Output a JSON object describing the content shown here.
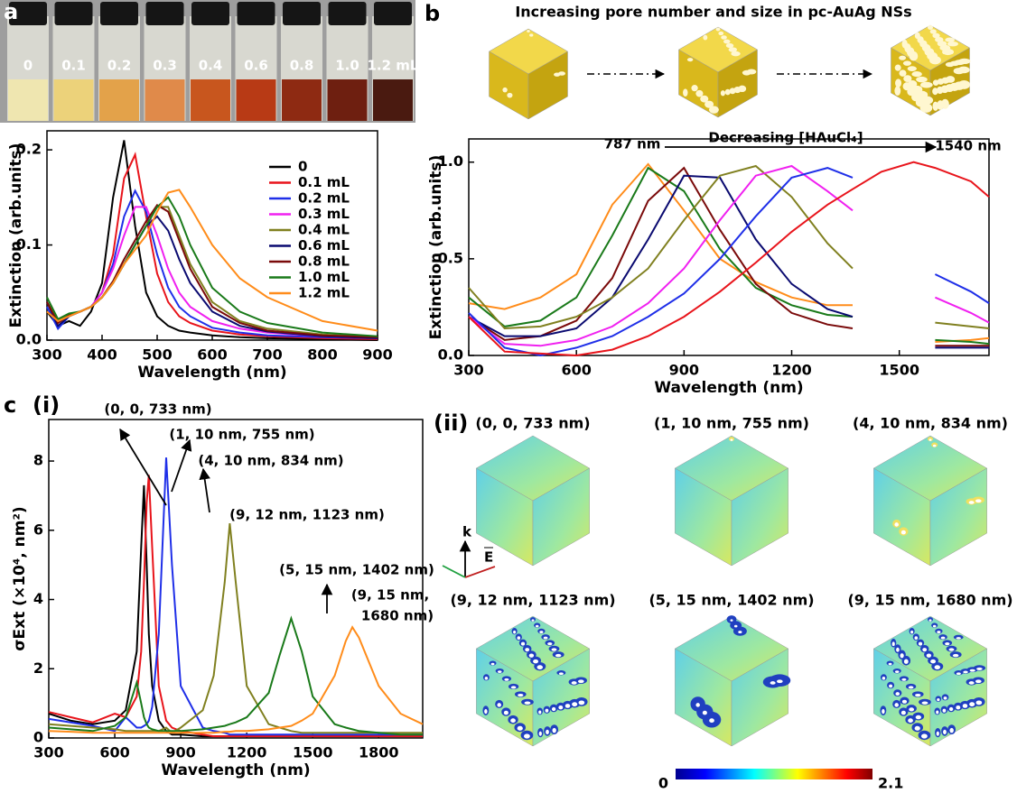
{
  "panel_labels": [
    "a",
    "b",
    "c",
    "(i)",
    "(ii)"
  ],
  "vials": [
    "0",
    "0.1",
    "0.2",
    "0.3",
    "0.4",
    "0.6",
    "0.8",
    "1.0",
    "1.2 mL"
  ],
  "scheme_title": "Increasing pore number and size in pc-AuAg NSs",
  "axes_labels": [
    "k",
    "E"
  ],
  "cubes": [
    "(0, 0, 733 nm)",
    "(1, 10 nm, 755 nm)",
    "(4, 10 nm, 834 nm)",
    "(9, 12 nm, 1123 nm)",
    "(5, 15 nm, 1402 nm)",
    "(9, 15 nm, 1680 nm)"
  ],
  "colorbar": {
    "min": 0,
    "max": 2.1
  },
  "chart_data": [
    {
      "type": "line",
      "xlabel": "Wavelength (nm)",
      "ylabel": "Extinction (arb.units)",
      "x": [
        300,
        320,
        340,
        360,
        380,
        400,
        420,
        440,
        460,
        480,
        500,
        520,
        540,
        560,
        600,
        650,
        700,
        800,
        900
      ],
      "xlim": [
        300,
        900
      ],
      "xticks": [
        300,
        400,
        500,
        600,
        700,
        800,
        900
      ],
      "ylim": [
        0,
        0.22
      ],
      "yticks": [
        {
          "value": 0,
          "label": "0.0"
        },
        0.1,
        0.2
      ],
      "legend": "upper right",
      "series": [
        {
          "name": "0",
          "color": "#000000",
          "values": [
            0.03,
            0.015,
            0.02,
            0.015,
            0.03,
            0.06,
            0.15,
            0.21,
            0.12,
            0.05,
            0.025,
            0.015,
            0.01,
            0.008,
            0.005,
            0.003,
            0.002,
            0.001,
            0
          ]
        },
        {
          "name": "0.1 mL",
          "color": "#e8141b",
          "values": [
            0.04,
            0.02,
            0.027,
            0.03,
            0.035,
            0.05,
            0.09,
            0.17,
            0.195,
            0.13,
            0.07,
            0.04,
            0.025,
            0.018,
            0.01,
            0.006,
            0.004,
            0.002,
            0.001
          ]
        },
        {
          "name": "0.2 mL",
          "color": "#1f2fe8",
          "values": [
            0.035,
            0.012,
            0.025,
            0.03,
            0.035,
            0.05,
            0.08,
            0.13,
            0.157,
            0.135,
            0.09,
            0.055,
            0.035,
            0.025,
            0.013,
            0.008,
            0.005,
            0.003,
            0.002
          ]
        },
        {
          "name": "0.3 mL",
          "color": "#f020f0",
          "values": [
            0.04,
            0.018,
            0.027,
            0.03,
            0.035,
            0.05,
            0.075,
            0.11,
            0.14,
            0.14,
            0.11,
            0.075,
            0.05,
            0.035,
            0.02,
            0.012,
            0.008,
            0.004,
            0.002
          ]
        },
        {
          "name": "0.4 mL",
          "color": "#808020",
          "values": [
            0.04,
            0.02,
            0.027,
            0.03,
            0.035,
            0.045,
            0.06,
            0.08,
            0.1,
            0.12,
            0.14,
            0.14,
            0.11,
            0.08,
            0.04,
            0.02,
            0.012,
            0.006,
            0.003
          ]
        },
        {
          "name": "0.6 mL",
          "color": "#0a0a70",
          "values": [
            0.04,
            0.015,
            0.025,
            0.03,
            0.035,
            0.045,
            0.06,
            0.08,
            0.1,
            0.12,
            0.13,
            0.115,
            0.085,
            0.06,
            0.03,
            0.015,
            0.009,
            0.004,
            0.002
          ]
        },
        {
          "name": "0.8 mL",
          "color": "#7a0a0a",
          "values": [
            0.04,
            0.018,
            0.026,
            0.03,
            0.035,
            0.045,
            0.062,
            0.085,
            0.105,
            0.125,
            0.142,
            0.135,
            0.105,
            0.075,
            0.035,
            0.018,
            0.01,
            0.005,
            0.003
          ]
        },
        {
          "name": "1.0 mL",
          "color": "#1a7a1a",
          "values": [
            0.045,
            0.022,
            0.028,
            0.03,
            0.035,
            0.045,
            0.06,
            0.08,
            0.1,
            0.12,
            0.14,
            0.15,
            0.13,
            0.1,
            0.055,
            0.03,
            0.018,
            0.008,
            0.004
          ]
        },
        {
          "name": "1.2 mL",
          "color": "#ff8c1a",
          "values": [
            0.03,
            0.02,
            0.025,
            0.03,
            0.035,
            0.045,
            0.06,
            0.08,
            0.095,
            0.11,
            0.135,
            0.155,
            0.158,
            0.14,
            0.1,
            0.065,
            0.045,
            0.02,
            0.01
          ]
        }
      ]
    },
    {
      "type": "line",
      "xlabel": "Wavelength (nm)",
      "ylabel": "Extinction (arb.units)",
      "x": [
        300,
        400,
        500,
        600,
        700,
        800,
        900,
        1000,
        1100,
        1200,
        1300,
        1370,
        1450,
        1540,
        1600,
        1700,
        1750
      ],
      "xlim": [
        300,
        1750
      ],
      "xticks": [
        300,
        600,
        900,
        1200,
        1500
      ],
      "ylim": [
        0,
        1.12
      ],
      "yticks": [
        {
          "value": 0,
          "label": "0.0"
        },
        0.5,
        {
          "value": 1,
          "label": "1.0"
        }
      ],
      "annotations": [
        "787 nm",
        "Decreasing [HAuCl₄]",
        "1540 nm"
      ],
      "series": [
        {
          "color": "#ff8c1a",
          "values": [
            0.27,
            0.24,
            0.3,
            0.42,
            0.78,
            0.99,
            0.75,
            0.5,
            0.38,
            0.3,
            0.26,
            0.26,
            null,
            null,
            0.07,
            0.08,
            0.09
          ]
        },
        {
          "color": "#1a7a1a",
          "values": [
            0.3,
            0.15,
            0.18,
            0.3,
            0.62,
            0.97,
            0.85,
            0.55,
            0.35,
            0.26,
            0.21,
            0.2,
            null,
            null,
            0.08,
            0.07,
            0.06
          ]
        },
        {
          "color": "#7a0a0a",
          "values": [
            0.2,
            0.08,
            0.1,
            0.18,
            0.4,
            0.8,
            0.97,
            0.65,
            0.37,
            0.22,
            0.16,
            0.14,
            null,
            null,
            0.05,
            0.05,
            0.05
          ]
        },
        {
          "color": "#0a0a70",
          "values": [
            0.2,
            0.1,
            0.1,
            0.14,
            0.3,
            0.6,
            0.93,
            0.92,
            0.6,
            0.37,
            0.24,
            0.2,
            null,
            null,
            0.04,
            0.04,
            0.04
          ]
        },
        {
          "color": "#808020",
          "values": [
            0.35,
            0.14,
            0.15,
            0.2,
            0.3,
            0.45,
            0.7,
            0.93,
            0.98,
            0.82,
            0.58,
            0.45,
            null,
            null,
            0.17,
            0.15,
            0.14
          ]
        },
        {
          "color": "#f020f0",
          "values": [
            0.2,
            0.06,
            0.05,
            0.08,
            0.15,
            0.27,
            0.45,
            0.7,
            0.93,
            0.98,
            0.85,
            0.75,
            null,
            null,
            0.3,
            0.22,
            0.17
          ]
        },
        {
          "color": "#1f2fe8",
          "values": [
            0.22,
            0.04,
            0,
            0.04,
            0.1,
            0.2,
            0.32,
            0.5,
            0.72,
            0.92,
            0.97,
            0.92,
            null,
            null,
            0.42,
            0.33,
            0.27
          ]
        },
        {
          "color": "#e8141b",
          "values": [
            0.2,
            0.02,
            0.01,
            0,
            0.03,
            0.1,
            0.2,
            0.33,
            0.48,
            0.64,
            0.78,
            0.86,
            0.95,
            1.0,
            0.97,
            0.9,
            0.82
          ]
        }
      ]
    },
    {
      "type": "line",
      "xlabel": "Wavelength (nm)",
      "ylabel": "σExt (×10⁴, nm²)",
      "x": [
        300,
        400,
        500,
        600,
        650,
        700,
        720,
        733,
        745,
        755,
        770,
        800,
        834,
        860,
        900,
        1000,
        1050,
        1100,
        1123,
        1150,
        1200,
        1300,
        1350,
        1402,
        1450,
        1500,
        1600,
        1650,
        1680,
        1710,
        1800,
        1900,
        2000
      ],
      "xlim": [
        300,
        2000
      ],
      "xticks": [
        300,
        600,
        900,
        1200,
        1500,
        1800
      ],
      "ylim": [
        0,
        9.2
      ],
      "yticks": [
        0,
        2,
        4,
        6,
        8
      ],
      "annotations": [
        "(0, 0, 733 nm)",
        "(1, 10 nm, 755 nm)",
        "(4, 10 nm, 834 nm)",
        "(9, 12 nm, 1123 nm)",
        "(5, 15 nm, 1402 nm)",
        "(9, 15 nm,",
        "1680 nm)"
      ],
      "series": [
        {
          "color": "#000000",
          "values": [
            0.7,
            0.5,
            0.4,
            0.5,
            0.8,
            2.5,
            5.5,
            7.3,
            5,
            3,
            1.5,
            0.5,
            0.2,
            0.1,
            0.1,
            0.05,
            0.05,
            0.05,
            0.05,
            0.05,
            0.05,
            0.05,
            0.05,
            0.05,
            0.05,
            0.05,
            0.05,
            0.05,
            0.05,
            0.05,
            0.05,
            0.05,
            0.05
          ]
        },
        {
          "color": "#e8141b",
          "values": [
            0.75,
            0.6,
            0.45,
            0.7,
            0.6,
            1.2,
            2.5,
            4.5,
            6.8,
            7.6,
            5.5,
            1.5,
            0.5,
            0.3,
            0.2,
            0.1,
            0.05,
            0.05,
            0.05,
            0.05,
            0.05,
            0.05,
            0.05,
            0.05,
            0.05,
            0.05,
            0.05,
            0.05,
            0.05,
            0.05,
            0.05,
            0.05,
            0.05
          ]
        },
        {
          "color": "#1f2fe8",
          "values": [
            0.55,
            0.45,
            0.35,
            0.2,
            0.6,
            0.3,
            0.3,
            0.35,
            0.4,
            0.5,
            0.9,
            3,
            8.1,
            5,
            1.5,
            0.3,
            0.2,
            0.15,
            0.1,
            0.1,
            0.1,
            0.1,
            0.1,
            0.1,
            0.1,
            0.1,
            0.1,
            0.1,
            0.1,
            0.1,
            0.1,
            0.1,
            0.1
          ]
        },
        {
          "color": "#808020",
          "values": [
            0.4,
            0.35,
            0.3,
            0.25,
            0.2,
            0.2,
            0.2,
            0.2,
            0.2,
            0.2,
            0.2,
            0.2,
            0.3,
            0.15,
            0.3,
            0.8,
            1.8,
            4.5,
            6.2,
            4.5,
            1.5,
            0.4,
            0.3,
            0.2,
            0.15,
            0.15,
            0.15,
            0.15,
            0.15,
            0.15,
            0.15,
            0.15,
            0.15
          ]
        },
        {
          "color": "#1a7a1a",
          "values": [
            0.3,
            0.25,
            0.2,
            0.35,
            0.6,
            1.6,
            1,
            0.6,
            0.4,
            0.3,
            0.25,
            0.2,
            0.2,
            0.2,
            0.2,
            0.25,
            0.3,
            0.35,
            0.4,
            0.45,
            0.6,
            1.3,
            2.4,
            3.45,
            2.5,
            1.2,
            0.4,
            0.3,
            0.25,
            0.2,
            0.15,
            0.1,
            0.1
          ]
        },
        {
          "color": "#ff8c1a",
          "values": [
            0.2,
            0.18,
            0.15,
            0.15,
            0.15,
            0.15,
            0.15,
            0.15,
            0.15,
            0.15,
            0.15,
            0.15,
            0.15,
            0.15,
            0.15,
            0.15,
            0.15,
            0.18,
            0.18,
            0.2,
            0.2,
            0.25,
            0.3,
            0.35,
            0.5,
            0.7,
            1.8,
            2.8,
            3.2,
            2.9,
            1.5,
            0.7,
            0.4
          ]
        }
      ]
    }
  ]
}
